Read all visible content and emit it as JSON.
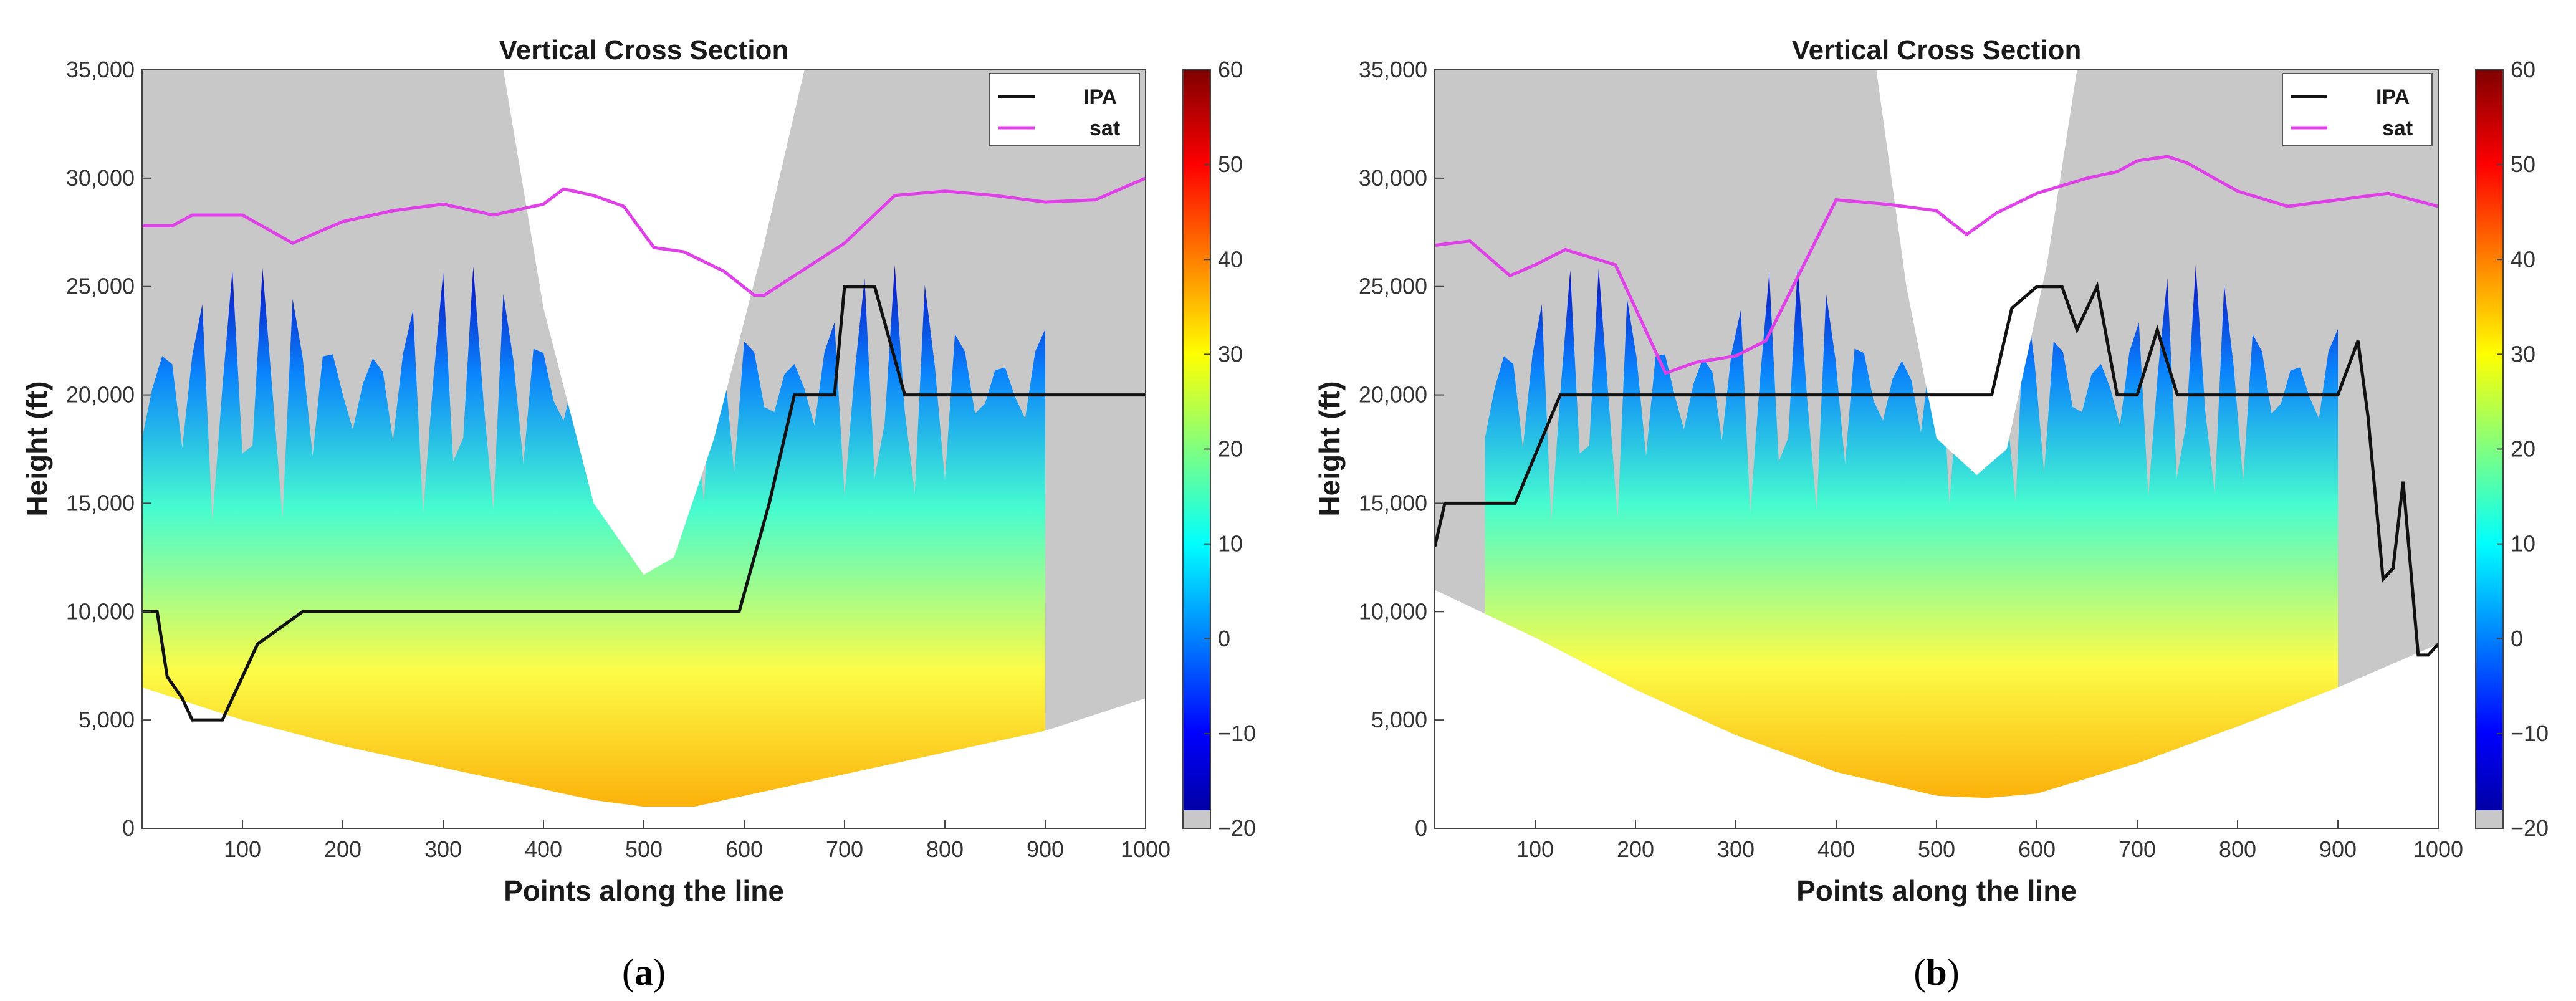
{
  "colors": {
    "shade": "#c8c8c8",
    "ipa": "#111111",
    "sat": "#e040e8",
    "colormap": [
      "#00008f",
      "#0000ff",
      "#0080ff",
      "#00ffff",
      "#80ff80",
      "#ffff00",
      "#ff8000",
      "#ff0000",
      "#800000"
    ]
  },
  "chart_data": [
    {
      "type": "area",
      "panel_caption_letter": "a",
      "title": "Vertical Cross Section",
      "xlabel": "Points along the line",
      "ylabel": "Height (ft)",
      "xlim": [
        0,
        1000
      ],
      "ylim": [
        0,
        35000
      ],
      "x_ticks": [
        "100",
        "200",
        "300",
        "400",
        "500",
        "600",
        "700",
        "800",
        "900",
        "1000"
      ],
      "y_ticks": [
        "0",
        "5,000",
        "10,000",
        "15,000",
        "20,000",
        "25,000",
        "30,000",
        "35,000"
      ],
      "colorbar": {
        "min": -20,
        "max": 60,
        "ticks": [
          "60",
          "50",
          "40",
          "30",
          "20",
          "10",
          "0",
          "−10",
          "−20"
        ]
      },
      "legend": [
        "IPA",
        "sat"
      ],
      "series": [
        {
          "name": "IPA",
          "x": [
            0,
            15,
            25,
            40,
            50,
            80,
            115,
            160,
            595,
            625,
            650,
            690,
            700,
            730,
            760,
            1000
          ],
          "y": [
            10000,
            10000,
            7000,
            6000,
            5000,
            5000,
            8500,
            10000,
            10000,
            15000,
            20000,
            20000,
            25000,
            25000,
            20000,
            20000
          ]
        },
        {
          "name": "sat",
          "x": [
            0,
            30,
            50,
            100,
            150,
            200,
            250,
            300,
            350,
            400,
            420,
            450,
            480,
            510,
            540,
            580,
            610,
            620,
            650,
            700,
            750,
            800,
            850,
            900,
            950,
            1000
          ],
          "y": [
            27800,
            27800,
            28300,
            28300,
            27000,
            28000,
            28500,
            28800,
            28300,
            28800,
            29500,
            29200,
            28700,
            26800,
            26600,
            25700,
            24600,
            24600,
            25500,
            27000,
            29200,
            29400,
            29200,
            28900,
            29000,
            30000
          ]
        }
      ],
      "terrain": {
        "x": [
          0,
          100,
          200,
          300,
          400,
          450,
          500,
          550,
          600,
          700,
          800,
          900,
          1000
        ],
        "y": [
          6500,
          5000,
          3800,
          2800,
          1800,
          1300,
          1000,
          1000,
          1500,
          2500,
          3500,
          4500,
          6000
        ]
      },
      "no_coverage_cone": {
        "x": [
          360,
          400,
          450,
          500,
          530,
          570,
          620,
          660
        ],
        "y": [
          35000,
          24000,
          15000,
          11700,
          12500,
          18000,
          27000,
          35000
        ]
      },
      "reflectivity_extent_x": [
        0,
        900
      ]
    },
    {
      "type": "area",
      "panel_caption_letter": "b",
      "title": "Vertical Cross Section",
      "xlabel": "Points along the line",
      "ylabel": "Height (ft)",
      "xlim": [
        0,
        1000
      ],
      "ylim": [
        0,
        35000
      ],
      "x_ticks": [
        "100",
        "200",
        "300",
        "400",
        "500",
        "600",
        "700",
        "800",
        "900",
        "1000"
      ],
      "y_ticks": [
        "0",
        "5,000",
        "10,000",
        "15,000",
        "20,000",
        "25,000",
        "30,000",
        "35,000"
      ],
      "colorbar": {
        "min": -20,
        "max": 60,
        "ticks": [
          "60",
          "50",
          "40",
          "30",
          "20",
          "10",
          "0",
          "−10",
          "−20"
        ]
      },
      "legend": [
        "IPA",
        "sat"
      ],
      "series": [
        {
          "name": "IPA",
          "x": [
            0,
            10,
            80,
            125,
            555,
            575,
            600,
            625,
            640,
            660,
            680,
            700,
            720,
            740,
            900,
            920,
            930,
            945,
            955,
            965,
            980,
            990,
            1000
          ],
          "y": [
            13000,
            15000,
            15000,
            20000,
            20000,
            24000,
            25000,
            25000,
            23000,
            25000,
            20000,
            20000,
            23000,
            20000,
            20000,
            22500,
            19000,
            11500,
            12000,
            16000,
            8000,
            8000,
            8500
          ]
        },
        {
          "name": "sat",
          "x": [
            0,
            35,
            75,
            100,
            130,
            180,
            230,
            260,
            300,
            330,
            400,
            450,
            500,
            530,
            560,
            600,
            650,
            680,
            700,
            730,
            750,
            800,
            850,
            900,
            950,
            1000
          ],
          "y": [
            26900,
            27100,
            25500,
            26000,
            26700,
            26000,
            21000,
            21500,
            21800,
            22500,
            29000,
            28800,
            28500,
            27400,
            28400,
            29300,
            30000,
            30300,
            30800,
            31000,
            30700,
            29400,
            28700,
            29000,
            29300,
            28700
          ]
        }
      ],
      "terrain": {
        "x": [
          0,
          100,
          200,
          300,
          400,
          500,
          550,
          600,
          700,
          800,
          900,
          1000
        ],
        "y": [
          11000,
          8800,
          6400,
          4300,
          2600,
          1500,
          1400,
          1600,
          3000,
          4700,
          6500,
          8500
        ]
      },
      "no_coverage_cone": {
        "x": [
          440,
          470,
          500,
          540,
          570,
          610,
          640
        ],
        "y": [
          35000,
          25000,
          18000,
          16300,
          17500,
          26000,
          35000
        ]
      },
      "reflectivity_extent_x": [
        50,
        900
      ]
    }
  ]
}
